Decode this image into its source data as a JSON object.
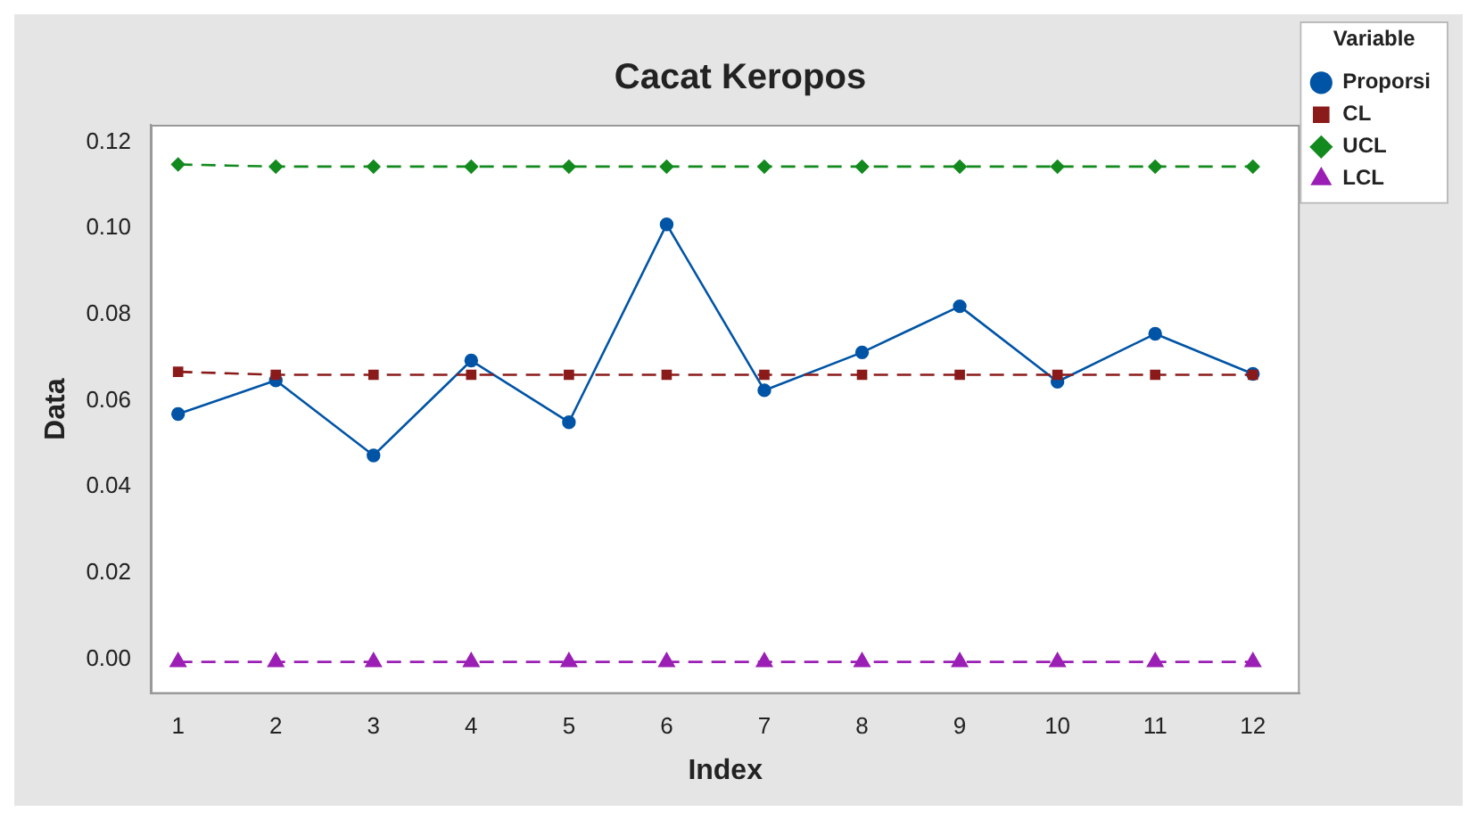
{
  "chart_data": {
    "type": "line",
    "title": "Cacat Keropos",
    "xlabel": "Index",
    "ylabel": "Data",
    "legend_title": "Variable",
    "legend": "top right",
    "grid": false,
    "x": [
      1,
      2,
      3,
      4,
      5,
      6,
      7,
      8,
      9,
      10,
      11,
      12
    ],
    "xlim": [
      0.72,
      12.48
    ],
    "xticks": [
      1,
      2,
      3,
      4,
      5,
      6,
      7,
      8,
      9,
      10,
      11,
      12
    ],
    "ylim": [
      -0.008,
      0.124
    ],
    "yticks": [
      {
        "value": 0,
        "label": "0.00"
      },
      {
        "value": 0.02,
        "label": "0.02"
      },
      {
        "value": 0.04,
        "label": "0.04"
      },
      {
        "value": 0.06,
        "label": "0.06"
      },
      {
        "value": 0.08,
        "label": "0.08"
      },
      {
        "value": 0.1,
        "label": "0.10"
      },
      {
        "value": 0.12,
        "label": "0.12"
      }
    ],
    "series": [
      {
        "name": "Proporsi",
        "color": "#0054a6",
        "marker": "circle",
        "line_style": "solid",
        "values": [
          0.0569,
          0.0647,
          0.0473,
          0.0693,
          0.055,
          0.1009,
          0.0624,
          0.0712,
          0.0819,
          0.0644,
          0.0755,
          0.0662
        ]
      },
      {
        "name": "CL",
        "color": "#8b1a1a",
        "marker": "square",
        "line_style": "dashed",
        "values": [
          0.0667,
          0.066,
          0.066,
          0.066,
          0.066,
          0.066,
          0.066,
          0.066,
          0.066,
          0.066,
          0.066,
          0.066
        ]
      },
      {
        "name": "UCL",
        "color": "#138a1e",
        "marker": "diamond",
        "line_style": "dashed",
        "values": [
          0.1148,
          0.1143,
          0.1143,
          0.1143,
          0.1143,
          0.1143,
          0.1143,
          0.1143,
          0.1143,
          0.1143,
          0.1143,
          0.1143
        ]
      },
      {
        "name": "LCL",
        "color": "#9b1fb5",
        "marker": "triangle",
        "line_style": "dashed",
        "values": [
          -0.0006,
          -0.0006,
          -0.0006,
          -0.0006,
          -0.0006,
          -0.0006,
          -0.0006,
          -0.0006,
          -0.0006,
          -0.0006,
          -0.0006,
          -0.0006
        ]
      }
    ]
  }
}
